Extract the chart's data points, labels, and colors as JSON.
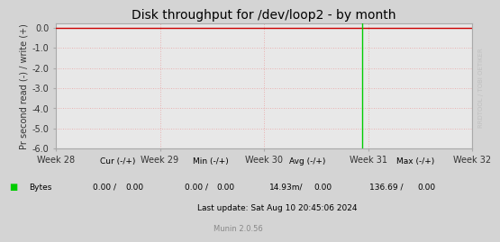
{
  "title": "Disk throughput for /dev/loop2 - by month",
  "ylabel": "Pr second read (-) / write (+)",
  "bg_color": "#d4d4d4",
  "plot_bg_color": "#e8e8e8",
  "grid_color_minor": "#e8a0a0",
  "border_color": "#aaaaaa",
  "top_line_color": "#cc0000",
  "xticklabels": [
    "Week 28",
    "Week 29",
    "Week 30",
    "Week 31",
    "Week 32"
  ],
  "xtick_positions": [
    0.0,
    0.25,
    0.5,
    0.75,
    1.0
  ],
  "ylim": [
    -6.0,
    0.2
  ],
  "yticks": [
    0.0,
    -1.0,
    -2.0,
    -3.0,
    -4.0,
    -5.0,
    -6.0
  ],
  "green_line_x": 0.735,
  "legend_color": "#00cc00",
  "right_label": "RRDTOOL / TOBI OETIKER",
  "right_label_color": "#c0c0c0",
  "watermark": "Munin 2.0.56",
  "footer_line3": "Last update: Sat Aug 10 20:45:06 2024"
}
